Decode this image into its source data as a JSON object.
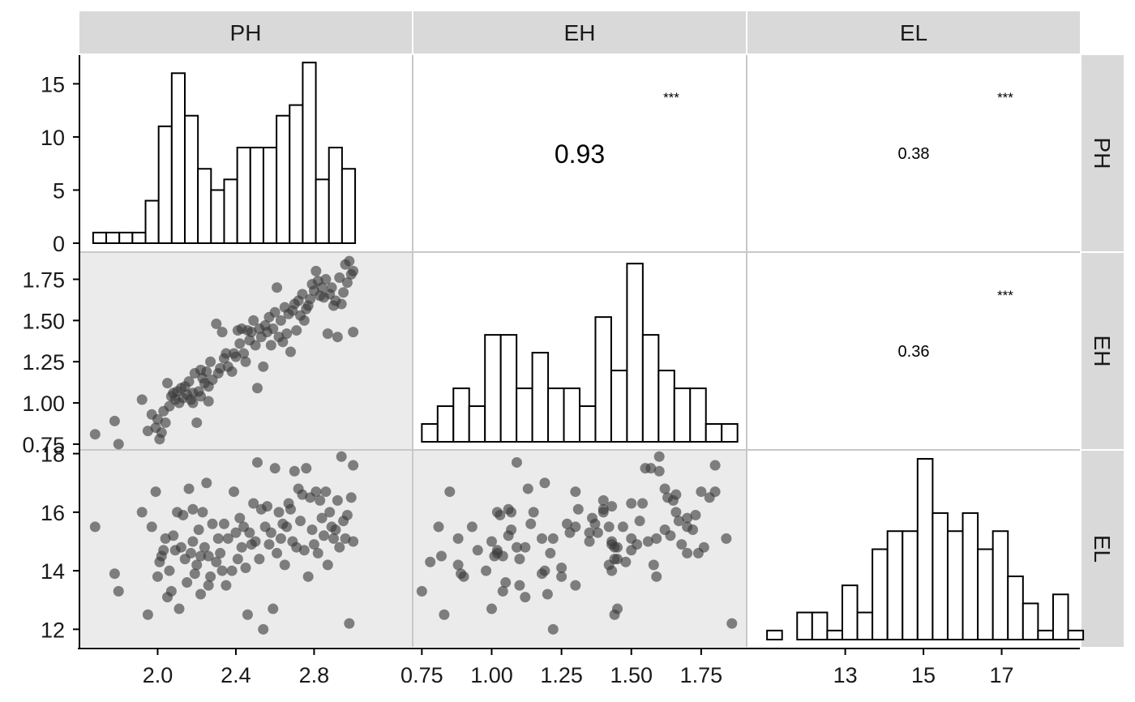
{
  "chart_data": {
    "type": "scatter-matrix",
    "variables": [
      "PH",
      "EH",
      "EL"
    ],
    "colors": {
      "strip": "#d9d9d9",
      "lower_panel": "#ebebeb",
      "upper_panel": "#ffffff",
      "grid_line": "#c8c8c8",
      "bar_fill": "#ffffff",
      "bar_stroke": "#000000",
      "point": "#3a3a3a"
    },
    "axes": {
      "PH": {
        "range": [
          1.6,
          3.3
        ],
        "ticks": [
          2.0,
          2.4,
          2.8
        ],
        "tick_labels": [
          "2.0",
          "2.4",
          "2.8"
        ]
      },
      "EH": {
        "range": [
          0.72,
          1.91
        ],
        "ticks": [
          0.75,
          1.0,
          1.25,
          1.5,
          1.75
        ],
        "tick_labels": [
          "0.75",
          "1.00",
          "1.25",
          "1.50",
          "1.75"
        ]
      },
      "EL": {
        "range": [
          11.4,
          18.1
        ],
        "ticks": [
          12,
          14,
          16,
          18
        ],
        "tick_labels": [
          "12",
          "14",
          "16",
          "18"
        ]
      },
      "EL_x": {
        "range": [
          10.5,
          19.0
        ],
        "ticks": [
          13,
          15,
          17
        ],
        "tick_labels": [
          "13",
          "15",
          "17"
        ]
      },
      "PH_hist_y": {
        "range": [
          0,
          17.7
        ],
        "ticks": [
          0,
          5,
          10,
          15
        ],
        "tick_labels": [
          "0",
          "5",
          "10",
          "15"
        ]
      }
    },
    "histograms": {
      "PH": {
        "bin_start": 1.67,
        "bin_width": 0.067,
        "counts": [
          1,
          1,
          1,
          1,
          4,
          11,
          16,
          12,
          7,
          5,
          6,
          9,
          9,
          9,
          12,
          13,
          17,
          6,
          9,
          7
        ]
      },
      "EH": {
        "bin_start": 0.75,
        "bin_width": 0.0565,
        "counts": [
          1,
          2,
          3,
          2,
          6,
          6,
          3,
          5,
          3,
          3,
          2,
          7,
          4,
          10,
          6,
          4,
          3,
          3,
          1,
          1
        ]
      },
      "EL": {
        "bin_start": 11.0,
        "bin_width": 0.385,
        "counts": [
          1,
          0,
          3,
          3,
          1,
          6,
          3,
          10,
          12,
          12,
          20,
          14,
          12,
          14,
          10,
          12,
          7,
          4,
          1,
          5,
          1
        ]
      }
    },
    "correlations": [
      {
        "row": "PH",
        "col": "EH",
        "value": "0.93",
        "stars": "***"
      },
      {
        "row": "PH",
        "col": "EL",
        "value": "0.38",
        "stars": "***"
      },
      {
        "row": "EH",
        "col": "EL",
        "value": "0.36",
        "stars": "***"
      }
    ],
    "points": [
      [
        1.68,
        0.81,
        15.5
      ],
      [
        1.78,
        0.89,
        13.9
      ],
      [
        1.8,
        0.75,
        13.3
      ],
      [
        1.92,
        1.02,
        16.0
      ],
      [
        1.95,
        0.83,
        12.5
      ],
      [
        1.97,
        0.93,
        15.5
      ],
      [
        1.99,
        0.85,
        16.7
      ],
      [
        2.0,
        0.9,
        13.8
      ],
      [
        2.01,
        0.78,
        14.3
      ],
      [
        2.02,
        0.82,
        14.5
      ],
      [
        2.03,
        0.95,
        14.7
      ],
      [
        2.04,
        0.88,
        15.1
      ],
      [
        2.05,
        1.12,
        13.1
      ],
      [
        2.06,
        0.98,
        14.0
      ],
      [
        2.07,
        1.04,
        13.3
      ],
      [
        2.08,
        1.06,
        15.2
      ],
      [
        2.09,
        1.02,
        14.7
      ],
      [
        2.1,
        1.07,
        16.0
      ],
      [
        2.11,
        1.0,
        12.7
      ],
      [
        2.12,
        1.09,
        14.8
      ],
      [
        2.13,
        1.03,
        15.9
      ],
      [
        2.14,
        1.1,
        14.4
      ],
      [
        2.15,
        1.05,
        13.6
      ],
      [
        2.16,
        1.13,
        16.8
      ],
      [
        2.17,
        1.02,
        14.6
      ],
      [
        2.18,
        1.0,
        15.0
      ],
      [
        2.19,
        1.18,
        13.9
      ],
      [
        2.2,
        0.88,
        14.2
      ],
      [
        2.21,
        1.07,
        15.4
      ],
      [
        2.22,
        1.2,
        13.2
      ],
      [
        2.23,
        1.15,
        16.0
      ],
      [
        2.24,
        1.12,
        14.8
      ],
      [
        2.25,
        1.19,
        17.0
      ],
      [
        2.26,
        1.01,
        14.5
      ],
      [
        2.27,
        1.25,
        13.8
      ],
      [
        2.28,
        1.14,
        15.6
      ],
      [
        2.3,
        1.48,
        14.3
      ],
      [
        2.31,
        1.18,
        15.1
      ],
      [
        2.32,
        1.21,
        14.6
      ],
      [
        2.33,
        1.43,
        14.0
      ],
      [
        2.34,
        1.27,
        15.6
      ],
      [
        2.35,
        1.3,
        13.5
      ],
      [
        2.36,
        1.22,
        15.1
      ],
      [
        2.38,
        1.19,
        14.0
      ],
      [
        2.39,
        1.3,
        16.7
      ],
      [
        2.4,
        1.28,
        15.3
      ],
      [
        2.41,
        1.44,
        14.4
      ],
      [
        2.42,
        1.36,
        15.8
      ],
      [
        2.43,
        1.45,
        14.8
      ],
      [
        2.44,
        1.3,
        15.5
      ],
      [
        2.45,
        1.25,
        14.1
      ],
      [
        2.46,
        1.44,
        12.5
      ],
      [
        2.47,
        1.38,
        15.3
      ],
      [
        2.48,
        1.43,
        14.9
      ],
      [
        2.49,
        1.5,
        16.3
      ],
      [
        2.5,
        1.35,
        15.0
      ],
      [
        2.51,
        1.09,
        17.7
      ],
      [
        2.52,
        1.45,
        14.4
      ],
      [
        2.53,
        1.4,
        16.1
      ],
      [
        2.54,
        1.22,
        12.0
      ],
      [
        2.55,
        1.47,
        15.5
      ],
      [
        2.56,
        1.43,
        16.2
      ],
      [
        2.57,
        1.52,
        14.9
      ],
      [
        2.58,
        1.35,
        15.3
      ],
      [
        2.59,
        1.45,
        12.7
      ],
      [
        2.6,
        1.55,
        17.5
      ],
      [
        2.61,
        1.7,
        14.6
      ],
      [
        2.62,
        1.4,
        16.0
      ],
      [
        2.63,
        1.5,
        15.1
      ],
      [
        2.64,
        1.37,
        15.6
      ],
      [
        2.65,
        1.58,
        14.2
      ],
      [
        2.66,
        1.42,
        15.5
      ],
      [
        2.67,
        1.54,
        16.3
      ],
      [
        2.68,
        1.31,
        16.1
      ],
      [
        2.69,
        1.56,
        15.0
      ],
      [
        2.7,
        1.6,
        17.4
      ],
      [
        2.71,
        1.44,
        14.8
      ],
      [
        2.72,
        1.62,
        16.8
      ],
      [
        2.73,
        1.53,
        15.7
      ],
      [
        2.74,
        1.66,
        16.6
      ],
      [
        2.75,
        1.5,
        14.7
      ],
      [
        2.76,
        1.57,
        17.5
      ],
      [
        2.77,
        1.59,
        13.8
      ],
      [
        2.78,
        1.63,
        16.5
      ],
      [
        2.79,
        1.72,
        15.4
      ],
      [
        2.8,
        1.68,
        14.9
      ],
      [
        2.81,
        1.8,
        16.7
      ],
      [
        2.82,
        1.74,
        14.6
      ],
      [
        2.83,
        1.65,
        16.4
      ],
      [
        2.84,
        1.7,
        15.8
      ],
      [
        2.85,
        1.64,
        15.2
      ],
      [
        2.86,
        1.75,
        16.7
      ],
      [
        2.87,
        1.42,
        14.2
      ],
      [
        2.88,
        1.66,
        16.0
      ],
      [
        2.89,
        1.7,
        15.5
      ],
      [
        2.9,
        1.59,
        15.1
      ],
      [
        2.91,
        1.62,
        15.4
      ],
      [
        2.92,
        1.4,
        16.4
      ],
      [
        2.93,
        1.76,
        14.8
      ],
      [
        2.94,
        1.6,
        17.9
      ],
      [
        2.95,
        1.67,
        15.7
      ],
      [
        2.96,
        1.84,
        15.1
      ],
      [
        2.97,
        1.73,
        15.9
      ],
      [
        2.98,
        1.86,
        12.2
      ],
      [
        2.99,
        1.78,
        16.5
      ],
      [
        3.0,
        1.8,
        17.6
      ],
      [
        3.0,
        1.43,
        15.0
      ],
      [
        2.18,
        1.06,
        16.1
      ],
      [
        2.22,
        1.04,
        14.5
      ],
      [
        2.26,
        1.1,
        13.5
      ]
    ]
  }
}
